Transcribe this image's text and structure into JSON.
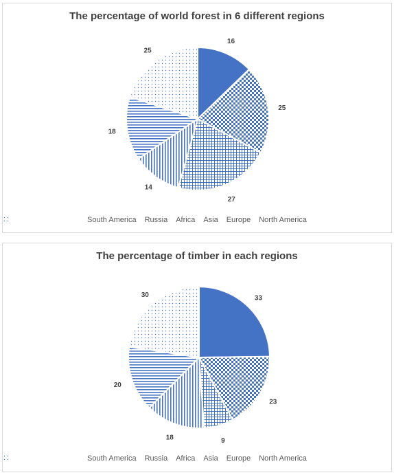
{
  "chart_data": [
    {
      "type": "pie",
      "title": "The percentage of world forest in 6 different regions",
      "categories": [
        "South America",
        "Russia",
        "Africa",
        "Asia",
        "Europe",
        "North America"
      ],
      "values": [
        16,
        25,
        27,
        14,
        18,
        25
      ],
      "legend_position": "bottom"
    },
    {
      "type": "pie",
      "title": "The percentage of timber in each regions",
      "categories": [
        "South America",
        "Russia",
        "Africa",
        "Asia",
        "Europe",
        "North America"
      ],
      "values": [
        33,
        23,
        9,
        18,
        20,
        30
      ],
      "legend_position": "bottom"
    }
  ],
  "colors": {
    "accent": "#4472c4",
    "title_text": "#404040",
    "legend_text": "#595959"
  }
}
